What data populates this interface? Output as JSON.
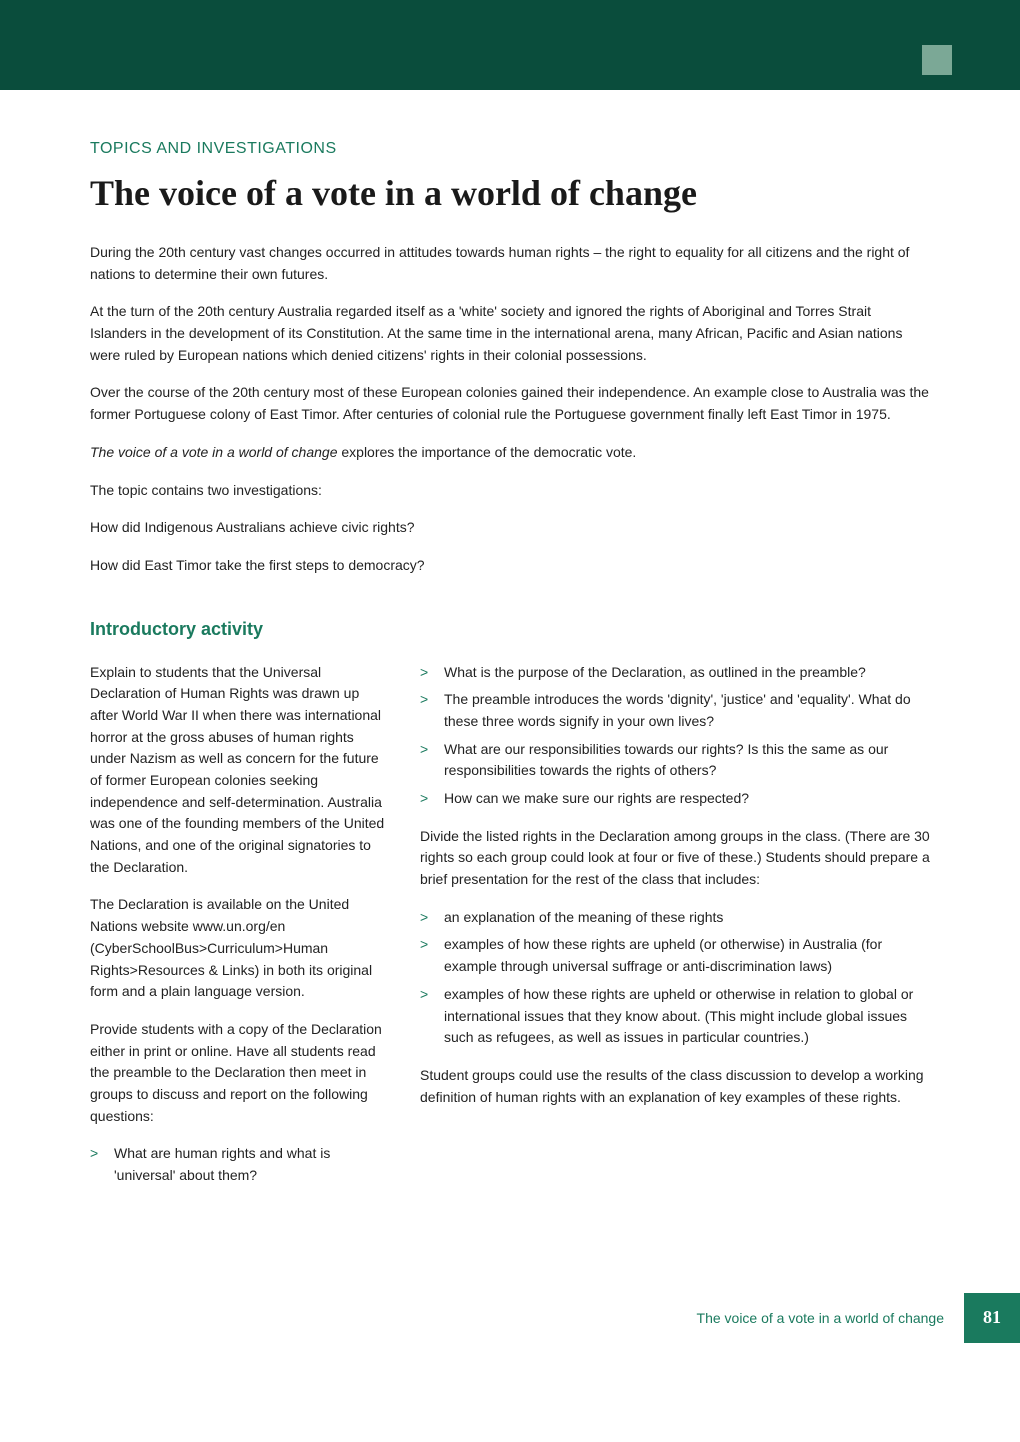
{
  "colors": {
    "header_bg": "#0a4d3c",
    "accent": "#1a7a5e",
    "decor_left": "#7ba896",
    "decor_right": "#0a4d3c",
    "text": "#222222",
    "title": "#1a1a1a",
    "page_bg": "#ffffff"
  },
  "header": {
    "overline": "TOPICS AND INVESTIGATIONS",
    "title": "The voice of a vote in a world of change"
  },
  "intro": {
    "p1": "During the 20th century vast changes occurred in attitudes towards human rights – the right to equality for all citizens and the right of nations to determine their own futures.",
    "p2": "At the turn of the 20th century Australia regarded itself as a 'white' society and ignored the rights of Aboriginal and Torres Strait Islanders in the development of its Constitution. At the same time in the international arena, many African, Pacific and Asian nations were ruled by European nations which denied citizens' rights in their colonial possessions.",
    "p3": "Over the course of the 20th century most of these European colonies gained their independence. An example close to Australia was the former Portuguese colony of East Timor. After centuries of colonial rule the Portuguese government finally left East Timor in 1975.",
    "p4_italic": "The voice of a vote in a world of change",
    "p4_rest": " explores the importance of the democratic vote.",
    "p5": "The topic contains two investigations:",
    "p6": "How did Indigenous Australians achieve civic rights?",
    "p7": "How did East Timor take the first steps to democracy?"
  },
  "section": {
    "heading": "Introductory activity"
  },
  "left_col": {
    "p1": "Explain to students that the Universal Declaration of Human Rights was drawn up after World War II when there was international horror at the gross abuses of human rights under Nazism as well as concern for the future of former European colonies seeking independence and self-determination. Australia was one of the founding members of the United Nations, and one of the original signatories to the Declaration.",
    "p2": "The Declaration is available on the United Nations website www.un.org/en (CyberSchoolBus>Curriculum>Human Rights>Resources & Links) in both its original form and a plain language version.",
    "p3": "Provide students with a copy of the Declaration either in print or online. Have all students read the preamble to the Declaration then meet in groups to discuss and report on the following questions:",
    "bullets": [
      "What are human rights and what is 'universal' about them?"
    ]
  },
  "right_col": {
    "bullets1": [
      "What is the purpose of the Declaration, as outlined in the preamble?",
      "The preamble introduces the words 'dignity', 'justice' and 'equality'. What do these three words signify in your own lives?",
      "What are our responsibilities towards our rights? Is this the same as our responsibilities towards the rights of others?",
      "How can we make sure our rights are respected?"
    ],
    "p1": "Divide the listed rights in the Declaration among groups in the class. (There are 30 rights so each group could look at four or five of these.) Students should prepare a brief presentation for the rest of the class that includes:",
    "bullets2": [
      "an explanation of the meaning of these rights",
      "examples of how these rights are upheld (or otherwise) in Australia (for example through universal suffrage or anti-discrimination laws)",
      "examples of how these rights are upheld or otherwise in relation to global or international issues that they know about. (This might include global issues such as refugees, as well as issues in particular countries.)"
    ],
    "p2": "Student groups could use the results of the class discussion to develop a working definition of human rights with an explanation of key examples of these rights."
  },
  "footer": {
    "text": "The voice of a vote in a world of change",
    "page_number": "81"
  }
}
